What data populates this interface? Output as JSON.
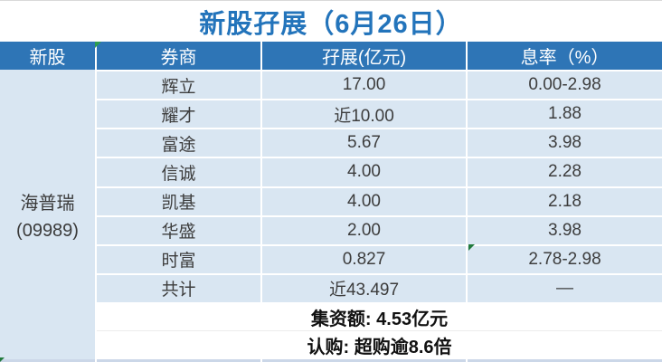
{
  "title": "新股孖展（6月26日）",
  "table": {
    "headers": {
      "stock": "新股",
      "broker": "券商",
      "margin": "孖展(亿元)",
      "rate": "息率（%）"
    },
    "stock": {
      "name": "海普瑞",
      "code": "(09989)"
    },
    "rows": [
      {
        "broker": "辉立",
        "margin": "17.00",
        "rate": "0.00-2.98"
      },
      {
        "broker": "耀才",
        "margin": "近10.00",
        "rate": "1.88"
      },
      {
        "broker": "富途",
        "margin": "5.67",
        "rate": "3.98"
      },
      {
        "broker": "信诚",
        "margin": "4.00",
        "rate": "2.28"
      },
      {
        "broker": "凯基",
        "margin": "4.00",
        "rate": "2.18"
      },
      {
        "broker": "华盛",
        "margin": "2.00",
        "rate": "3.98"
      },
      {
        "broker": "时富",
        "margin": "0.827",
        "rate": "2.78-2.98"
      },
      {
        "broker": "共计",
        "margin": "近43.497",
        "rate": "—"
      }
    ],
    "footer": {
      "funding": "集资额: 4.53亿元",
      "subscription": "认购: 超购逾8.6倍"
    }
  },
  "icons": {
    "header_indicator": "green-corner-triangle",
    "rate_cell_indicator": "green-corner-triangle",
    "bottom_left_indicator": "green-corner-triangle"
  },
  "colors": {
    "header_bg": "#2E75B6",
    "title_text": "#2374BB",
    "cell_bg": "#D9E6F2",
    "bottom_strip_bg": "#CBD7E8",
    "indicator_green": "#2F9E4E"
  }
}
